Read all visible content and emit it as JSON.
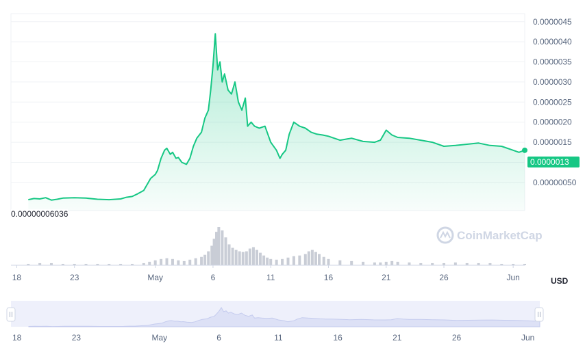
{
  "chart_data": {
    "type": "area",
    "currency": "USD",
    "watermark": "CoinMarketCap",
    "min_label": "0.00000006036",
    "last_price_label": "0.0000013",
    "y_ticks": [
      "0.0000045",
      "0.0000040",
      "0.0000035",
      "0.0000030",
      "0.0000025",
      "0.0000020",
      "0.0000015",
      "0.0000010",
      "0.00000050"
    ],
    "y_tick_values": [
      4.5e-06,
      4e-06,
      3.5e-06,
      3e-06,
      2.5e-06,
      2e-06,
      1.5e-06,
      1e-06,
      5e-07
    ],
    "x_ticks": [
      {
        "label": "18",
        "day": 18
      },
      {
        "label": "23",
        "day": 23
      },
      {
        "label": "May",
        "day": 30
      },
      {
        "label": "6",
        "day": 35
      },
      {
        "label": "11",
        "day": 40
      },
      {
        "label": "16",
        "day": 45
      },
      {
        "label": "21",
        "day": 50
      },
      {
        "label": "26",
        "day": 55
      },
      {
        "label": "Jun",
        "day": 61
      }
    ],
    "ylim": [
      -2e-07,
      4.7e-06
    ],
    "xlim": [
      17.5,
      62
    ],
    "series": [
      {
        "x": [
          19,
          19.5,
          20,
          20.5,
          21,
          21.5,
          22,
          23,
          24,
          25,
          26,
          27,
          27.5,
          28,
          28.5,
          29,
          29.3,
          29.6,
          30,
          30.2,
          30.5,
          30.8,
          31,
          31.3,
          31.5,
          31.8,
          32,
          32.3,
          32.7,
          33,
          33.3,
          33.6,
          34,
          34.3,
          34.6,
          34.8,
          35,
          35.2,
          35.4,
          35.6,
          35.8,
          36,
          36.3,
          36.6,
          36.9,
          37.2,
          37.5,
          37.8,
          38,
          38.3,
          38.6,
          39,
          39.5,
          40,
          40.5,
          40.8,
          41,
          41.3,
          41.6,
          42,
          42.5,
          43,
          43.5,
          44,
          44.5,
          45,
          46,
          47,
          48,
          49,
          49.5,
          50,
          50.5,
          51,
          52,
          53,
          54,
          55,
          56,
          57,
          58,
          59,
          60,
          61,
          61.5,
          62
        ],
        "y": [
          7e-08,
          1e-07,
          9e-08,
          1.2e-07,
          6e-08,
          8e-08,
          1.1e-07,
          1.2e-07,
          1.1e-07,
          8e-08,
          7e-08,
          9e-08,
          1.3e-07,
          1.5e-07,
          2.2e-07,
          3e-07,
          4.5e-07,
          6e-07,
          7e-07,
          8e-07,
          1.1e-06,
          1.3e-06,
          1.35e-06,
          1.2e-06,
          1.25e-06,
          1.1e-06,
          1.12e-06,
          1e-06,
          9.5e-07,
          1.1e-06,
          1.4e-06,
          1.6e-06,
          1.75e-06,
          2.1e-06,
          2.3e-06,
          2.8e-06,
          3.4e-06,
          4.2e-06,
          3.3e-06,
          3.5e-06,
          3e-06,
          3.2e-06,
          2.8e-06,
          2.7e-06,
          3e-06,
          2.5e-06,
          2.3e-06,
          2.6e-06,
          1.9e-06,
          2e-06,
          1.9e-06,
          1.85e-06,
          1.9e-06,
          1.5e-06,
          1.3e-06,
          1.1e-06,
          1.2e-06,
          1.3e-06,
          1.7e-06,
          2e-06,
          1.9e-06,
          1.85e-06,
          1.75e-06,
          1.7e-06,
          1.68e-06,
          1.65e-06,
          1.55e-06,
          1.6e-06,
          1.52e-06,
          1.5e-06,
          1.55e-06,
          1.8e-06,
          1.68e-06,
          1.62e-06,
          1.6e-06,
          1.55e-06,
          1.5e-06,
          1.4e-06,
          1.42e-06,
          1.45e-06,
          1.48e-06,
          1.42e-06,
          1.4e-06,
          1.3e-06,
          1.25e-06,
          1.3e-06
        ]
      }
    ],
    "volume": {
      "x": [
        19,
        20,
        21,
        22,
        23,
        24,
        25,
        26,
        27,
        28,
        29,
        29.5,
        30,
        30.5,
        31,
        31.5,
        32,
        32.5,
        33,
        33.5,
        34,
        34.3,
        34.6,
        34.9,
        35.1,
        35.3,
        35.5,
        35.8,
        36.1,
        36.4,
        36.7,
        37,
        37.3,
        37.6,
        37.9,
        38.2,
        38.5,
        38.8,
        39.1,
        39.4,
        39.7,
        40,
        40.5,
        41,
        41.5,
        42,
        42.5,
        43,
        43.3,
        43.6,
        43.9,
        44.2,
        44.6,
        45,
        46,
        47,
        48,
        49,
        49.5,
        50,
        50.5,
        51,
        52,
        53,
        54,
        55,
        56,
        57,
        58,
        59,
        60,
        61,
        62
      ],
      "v": [
        2,
        3,
        3,
        2,
        2,
        2,
        2,
        2,
        2,
        2,
        3,
        5,
        7,
        9,
        10,
        9,
        7,
        6,
        8,
        10,
        12,
        15,
        20,
        28,
        38,
        48,
        55,
        50,
        40,
        30,
        25,
        22,
        20,
        19,
        20,
        24,
        26,
        22,
        18,
        14,
        11,
        9,
        8,
        9,
        11,
        13,
        14,
        16,
        20,
        22,
        19,
        16,
        12,
        9,
        7,
        6,
        5,
        4,
        4,
        5,
        6,
        5,
        4,
        3,
        3,
        3,
        4,
        3,
        3,
        3,
        2,
        2,
        2
      ]
    }
  }
}
